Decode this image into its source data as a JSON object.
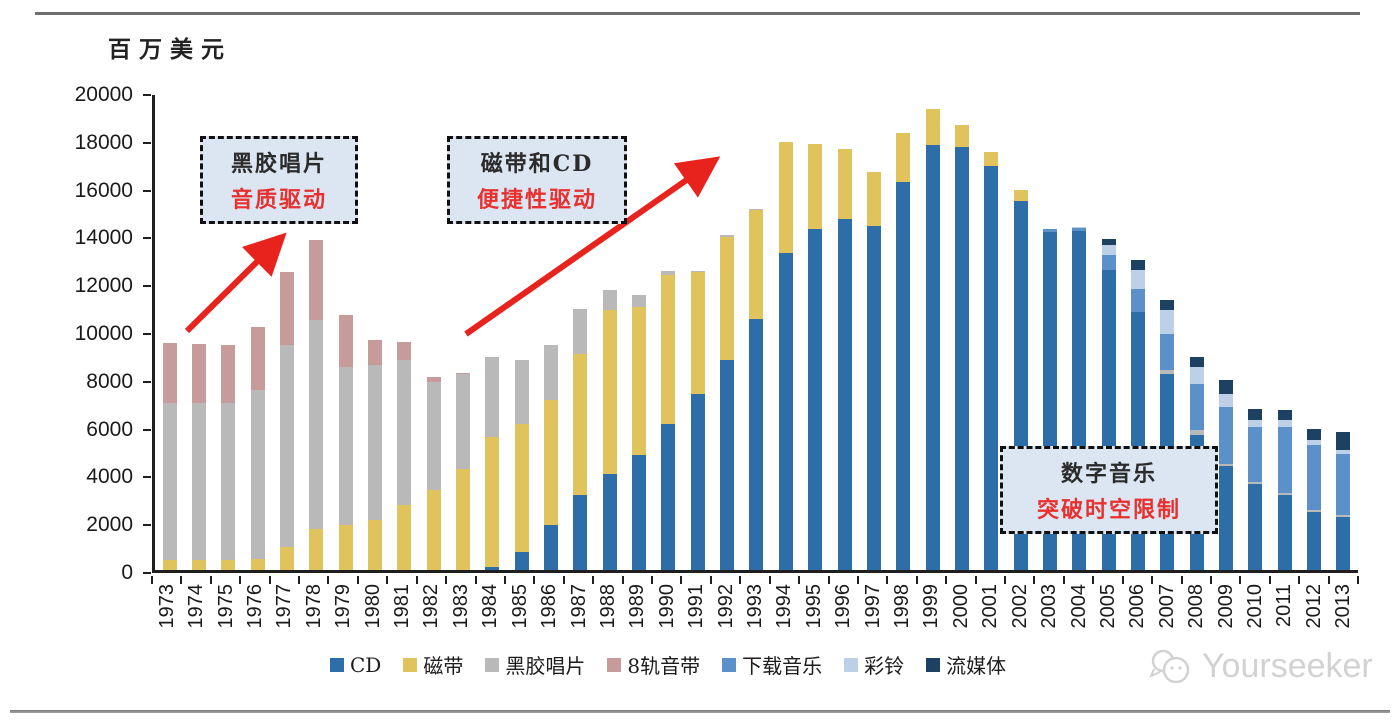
{
  "page": {
    "watermark_text": "Yourseeker"
  },
  "chart_data": {
    "type": "bar",
    "stacked": true,
    "unit_label": "百万美元",
    "ylim": [
      0,
      20000
    ],
    "ytick_step": 2000,
    "grid": false,
    "legend_position": "bottom",
    "axis_color": "#1f1f1f",
    "arrow_color": "#e8231d",
    "categories": [
      "1973",
      "1974",
      "1975",
      "1976",
      "1977",
      "1978",
      "1979",
      "1980",
      "1981",
      "1982",
      "1983",
      "1984",
      "1985",
      "1986",
      "1987",
      "1988",
      "1989",
      "1990",
      "1991",
      "1992",
      "1993",
      "1994",
      "1995",
      "1996",
      "1997",
      "1998",
      "1999",
      "2000",
      "2001",
      "2002",
      "2003",
      "2004",
      "2005",
      "2006",
      "2007",
      "2008",
      "2009",
      "2010",
      "2011",
      "2012",
      "2013"
    ],
    "series": [
      {
        "name": "CD",
        "color": "#2d6da8",
        "values": [
          0,
          0,
          0,
          0,
          0,
          0,
          0,
          0,
          0,
          0,
          0,
          130,
          750,
          1880,
          3140,
          4020,
          4810,
          6110,
          7360,
          8780,
          10500,
          13250,
          14270,
          14690,
          14390,
          16250,
          17800,
          17700,
          16900,
          15450,
          14150,
          14200,
          12550,
          10790,
          8220,
          5650,
          4350,
          3600,
          3140,
          2430,
          2200
        ]
      },
      {
        "name": "磁带",
        "color": "#e0c35c",
        "values": [
          420,
          420,
          420,
          460,
          960,
          1720,
          1880,
          2090,
          2720,
          3350,
          4230,
          5430,
          5360,
          5230,
          5900,
          6860,
          6190,
          6250,
          5090,
          5170,
          4570,
          4650,
          3550,
          2930,
          2260,
          2050,
          1500,
          900,
          600,
          450,
          0,
          0,
          0,
          0,
          0,
          0,
          0,
          0,
          0,
          0,
          0
        ]
      },
      {
        "name": "黑胶唱片",
        "color": "#b9b9b9",
        "values": [
          6570,
          6570,
          6570,
          7070,
          8450,
          8740,
          6610,
          6490,
          6060,
          4520,
          3970,
          3350,
          2670,
          2300,
          1880,
          830,
          500,
          150,
          60,
          60,
          50,
          0,
          0,
          0,
          0,
          0,
          0,
          0,
          0,
          0,
          0,
          0,
          0,
          0,
          150,
          210,
          100,
          100,
          100,
          100,
          100
        ]
      },
      {
        "name": "8轨音带",
        "color": "#c89b9b",
        "values": [
          2510,
          2470,
          2410,
          2640,
          3060,
          3350,
          2180,
          1040,
          760,
          200,
          50,
          0,
          0,
          0,
          0,
          0,
          0,
          0,
          0,
          0,
          0,
          0,
          0,
          0,
          0,
          0,
          0,
          0,
          0,
          0,
          0,
          0,
          0,
          0,
          0,
          0,
          0,
          0,
          0,
          0,
          0
        ]
      },
      {
        "name": "下载音乐",
        "color": "#5b91c8",
        "values": [
          0,
          0,
          0,
          0,
          0,
          0,
          0,
          0,
          0,
          0,
          0,
          0,
          0,
          0,
          0,
          0,
          0,
          0,
          0,
          0,
          0,
          0,
          0,
          0,
          0,
          0,
          0,
          0,
          0,
          0,
          100,
          100,
          650,
          970,
          1510,
          1920,
          2370,
          2280,
          2740,
          2700,
          2550
        ]
      },
      {
        "name": "彩铃",
        "color": "#bcd1e8",
        "values": [
          0,
          0,
          0,
          0,
          0,
          0,
          0,
          0,
          0,
          0,
          0,
          0,
          0,
          0,
          0,
          0,
          0,
          0,
          0,
          0,
          0,
          0,
          0,
          0,
          0,
          0,
          0,
          0,
          0,
          0,
          0,
          50,
          400,
          790,
          1000,
          710,
          540,
          290,
          290,
          230,
          170
        ]
      },
      {
        "name": "流媒体",
        "color": "#1d4163",
        "values": [
          0,
          0,
          0,
          0,
          0,
          0,
          0,
          0,
          0,
          0,
          0,
          0,
          0,
          0,
          0,
          0,
          0,
          0,
          0,
          0,
          0,
          0,
          0,
          0,
          0,
          0,
          0,
          0,
          0,
          0,
          0,
          0,
          250,
          420,
          420,
          420,
          590,
          470,
          420,
          440,
          750
        ]
      }
    ],
    "annotations": [
      {
        "line1": "黑胶唱片",
        "line2": "音质驱动"
      },
      {
        "line1": "磁带和CD",
        "line2": "便捷性驱动"
      },
      {
        "line1": "数字音乐",
        "line2": "突破时空限制"
      }
    ]
  }
}
